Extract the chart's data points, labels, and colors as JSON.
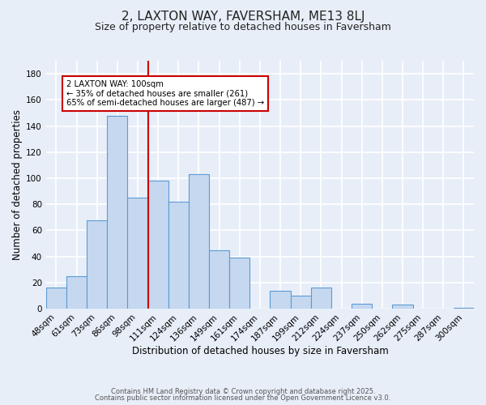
{
  "title": "2, LAXTON WAY, FAVERSHAM, ME13 8LJ",
  "subtitle": "Size of property relative to detached houses in Faversham",
  "xlabel": "Distribution of detached houses by size in Faversham",
  "ylabel": "Number of detached properties",
  "footer1": "Contains HM Land Registry data © Crown copyright and database right 2025.",
  "footer2": "Contains public sector information licensed under the Open Government Licence v3.0.",
  "bar_labels": [
    "48sqm",
    "61sqm",
    "73sqm",
    "86sqm",
    "98sqm",
    "111sqm",
    "124sqm",
    "136sqm",
    "149sqm",
    "161sqm",
    "174sqm",
    "187sqm",
    "199sqm",
    "212sqm",
    "224sqm",
    "237sqm",
    "250sqm",
    "262sqm",
    "275sqm",
    "287sqm",
    "300sqm"
  ],
  "bar_values": [
    16,
    25,
    68,
    148,
    85,
    98,
    82,
    103,
    45,
    39,
    0,
    14,
    10,
    16,
    0,
    4,
    0,
    3,
    0,
    0,
    1
  ],
  "bar_color": "#c5d8f0",
  "bar_edge_color": "#5b9bd5",
  "vline_x": 4.5,
  "vline_color": "#cc0000",
  "annotation_text": "2 LAXTON WAY: 100sqm\n← 35% of detached houses are smaller (261)\n65% of semi-detached houses are larger (487) →",
  "annotation_box_color": "#ffffff",
  "annotation_box_edge": "#cc0000",
  "ylim": [
    0,
    190
  ],
  "yticks": [
    0,
    20,
    40,
    60,
    80,
    100,
    120,
    140,
    160,
    180
  ],
  "bg_color": "#e8eef8",
  "grid_color": "#ffffff",
  "title_fontsize": 11,
  "subtitle_fontsize": 9,
  "axis_label_fontsize": 8.5,
  "tick_fontsize": 7.5,
  "footer_fontsize": 6.0
}
